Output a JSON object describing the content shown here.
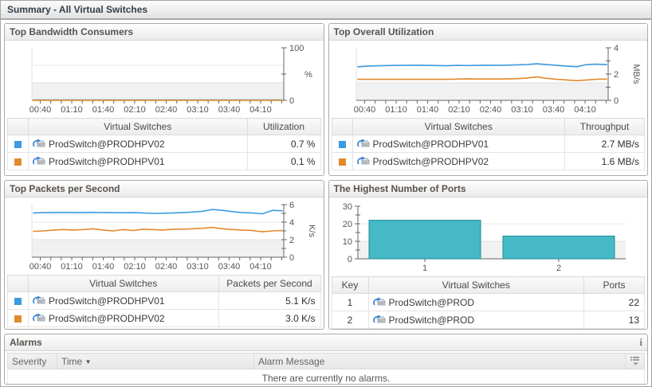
{
  "page": {
    "title": "Summary - All Virtual Switches"
  },
  "accents": {
    "series_blue": "#3d9be0",
    "series_orange": "#e2892c",
    "bar_teal": "#45b9c6"
  },
  "panels": {
    "bandwidth": {
      "title": "Top Bandwidth Consumers",
      "table": {
        "col_name": "Virtual Switches",
        "col_value": "Utilization",
        "rows": [
          {
            "color": "#3d9be0",
            "name": "ProdSwitch@PRODHPV02",
            "value": "0.7 %"
          },
          {
            "color": "#e2892c",
            "name": "ProdSwitch@PRODHPV01",
            "value": "0.1 %"
          }
        ]
      }
    },
    "utilization": {
      "title": "Top Overall Utilization",
      "table": {
        "col_name": "Virtual Switches",
        "col_value": "Throughput",
        "rows": [
          {
            "color": "#3d9be0",
            "name": "ProdSwitch@PRODHPV01",
            "value": "2.7 MB/s"
          },
          {
            "color": "#e2892c",
            "name": "ProdSwitch@PRODHPV02",
            "value": "1.6 MB/s"
          }
        ]
      }
    },
    "packets": {
      "title": "Top Packets per Second",
      "table": {
        "col_name": "Virtual Switches",
        "col_value": "Packets per Second",
        "rows": [
          {
            "color": "#3d9be0",
            "name": "ProdSwitch@PRODHPV01",
            "value": "5.1 K/s"
          },
          {
            "color": "#e2892c",
            "name": "ProdSwitch@PRODHPV02",
            "value": "3.0 K/s"
          }
        ]
      }
    },
    "ports": {
      "title": "The Highest Number of Ports",
      "table": {
        "col_key": "Key",
        "col_name": "Virtual Switches",
        "col_value": "Ports",
        "rows": [
          {
            "key": "1",
            "name": "ProdSwitch@PROD",
            "value": "22"
          },
          {
            "key": "2",
            "name": "ProdSwitch@PROD",
            "value": "13"
          }
        ]
      }
    }
  },
  "alarms": {
    "title": "Alarms",
    "info_icon": "i",
    "columns": {
      "severity": "Severity",
      "time": "Time",
      "message": "Alarm Message"
    },
    "sort_indicator": "▼",
    "empty_message": "There are currently no alarms."
  },
  "chart_data": [
    {
      "type": "line",
      "title": "Top Bandwidth Consumers",
      "ylabel": "%",
      "ylim": [
        0,
        100
      ],
      "y_ticks_labeled": [
        0,
        100
      ],
      "y_ticks_minor": [
        50
      ],
      "x_ticks": [
        "00:40",
        "01:10",
        "01:40",
        "02:10",
        "02:40",
        "03:10",
        "03:40",
        "04:10"
      ],
      "series": [
        {
          "name": "ProdSwitch@PRODHPV02",
          "color": "#3d9be0",
          "values": [
            0.7,
            0.7
          ]
        },
        {
          "name": "ProdSwitch@PRODHPV01",
          "color": "#e2892c",
          "values": [
            0.1,
            0.1
          ]
        }
      ]
    },
    {
      "type": "line",
      "title": "Top Overall Utilization",
      "ylabel": "MB/s",
      "ylim": [
        0,
        4
      ],
      "y_ticks_labeled": [
        0,
        2,
        4
      ],
      "y_ticks_minor": [
        1,
        3
      ],
      "x_ticks": [
        "00:40",
        "01:10",
        "01:40",
        "02:10",
        "02:40",
        "03:10",
        "03:40",
        "04:10"
      ],
      "series": [
        {
          "name": "ProdSwitch@PRODHPV01",
          "color": "#3d9be0",
          "values": [
            2.55,
            2.6,
            2.63,
            2.65,
            2.66,
            2.66,
            2.67,
            2.66,
            2.65,
            2.63,
            2.66,
            2.65,
            2.66,
            2.67,
            2.66,
            2.68,
            2.7,
            2.73,
            2.78,
            2.72,
            2.66,
            2.6,
            2.56,
            2.72,
            2.76,
            2.72
          ]
        },
        {
          "name": "ProdSwitch@PRODHPV02",
          "color": "#e2892c",
          "values": [
            1.6,
            1.6,
            1.6,
            1.6,
            1.6,
            1.6,
            1.6,
            1.6,
            1.6,
            1.6,
            1.62,
            1.63,
            1.62,
            1.63,
            1.62,
            1.63,
            1.65,
            1.7,
            1.78,
            1.67,
            1.6,
            1.55,
            1.5,
            1.55,
            1.6,
            1.62
          ]
        }
      ]
    },
    {
      "type": "line",
      "title": "Top Packets per Second",
      "ylabel": "K/s",
      "ylim": [
        0,
        6
      ],
      "y_ticks_labeled": [
        0,
        2,
        4,
        6
      ],
      "y_ticks_minor": [
        1,
        3,
        5
      ],
      "x_ticks": [
        "00:40",
        "01:10",
        "01:40",
        "02:10",
        "02:40",
        "03:10",
        "03:40",
        "04:10"
      ],
      "series": [
        {
          "name": "ProdSwitch@PRODHPV01",
          "color": "#3d9be0",
          "values": [
            5.05,
            5.1,
            5.1,
            5.12,
            5.1,
            5.1,
            5.12,
            5.1,
            5.1,
            5.08,
            5.1,
            5.05,
            5.0,
            5.02,
            5.05,
            5.1,
            5.15,
            5.25,
            5.45,
            5.35,
            5.2,
            5.1,
            5.05,
            4.95,
            5.35,
            5.3
          ]
        },
        {
          "name": "ProdSwitch@PRODHPV02",
          "color": "#e2892c",
          "values": [
            2.95,
            3.0,
            3.1,
            3.15,
            3.1,
            3.15,
            3.25,
            3.1,
            3.0,
            3.15,
            3.05,
            3.2,
            3.15,
            3.1,
            3.2,
            3.2,
            3.25,
            3.3,
            3.4,
            3.25,
            3.15,
            3.1,
            3.05,
            2.9,
            3.0,
            3.05
          ]
        }
      ]
    },
    {
      "type": "bar",
      "title": "The Highest Number of Ports",
      "categories": [
        "1",
        "2"
      ],
      "values": [
        22,
        13
      ],
      "ylim": [
        0,
        30
      ],
      "y_ticks_labeled": [
        0,
        10,
        20,
        30
      ],
      "y_ticks_minor": [
        5,
        15,
        25
      ],
      "bar_color": "#45b9c6",
      "bar_border": "#1f8d99"
    }
  ]
}
